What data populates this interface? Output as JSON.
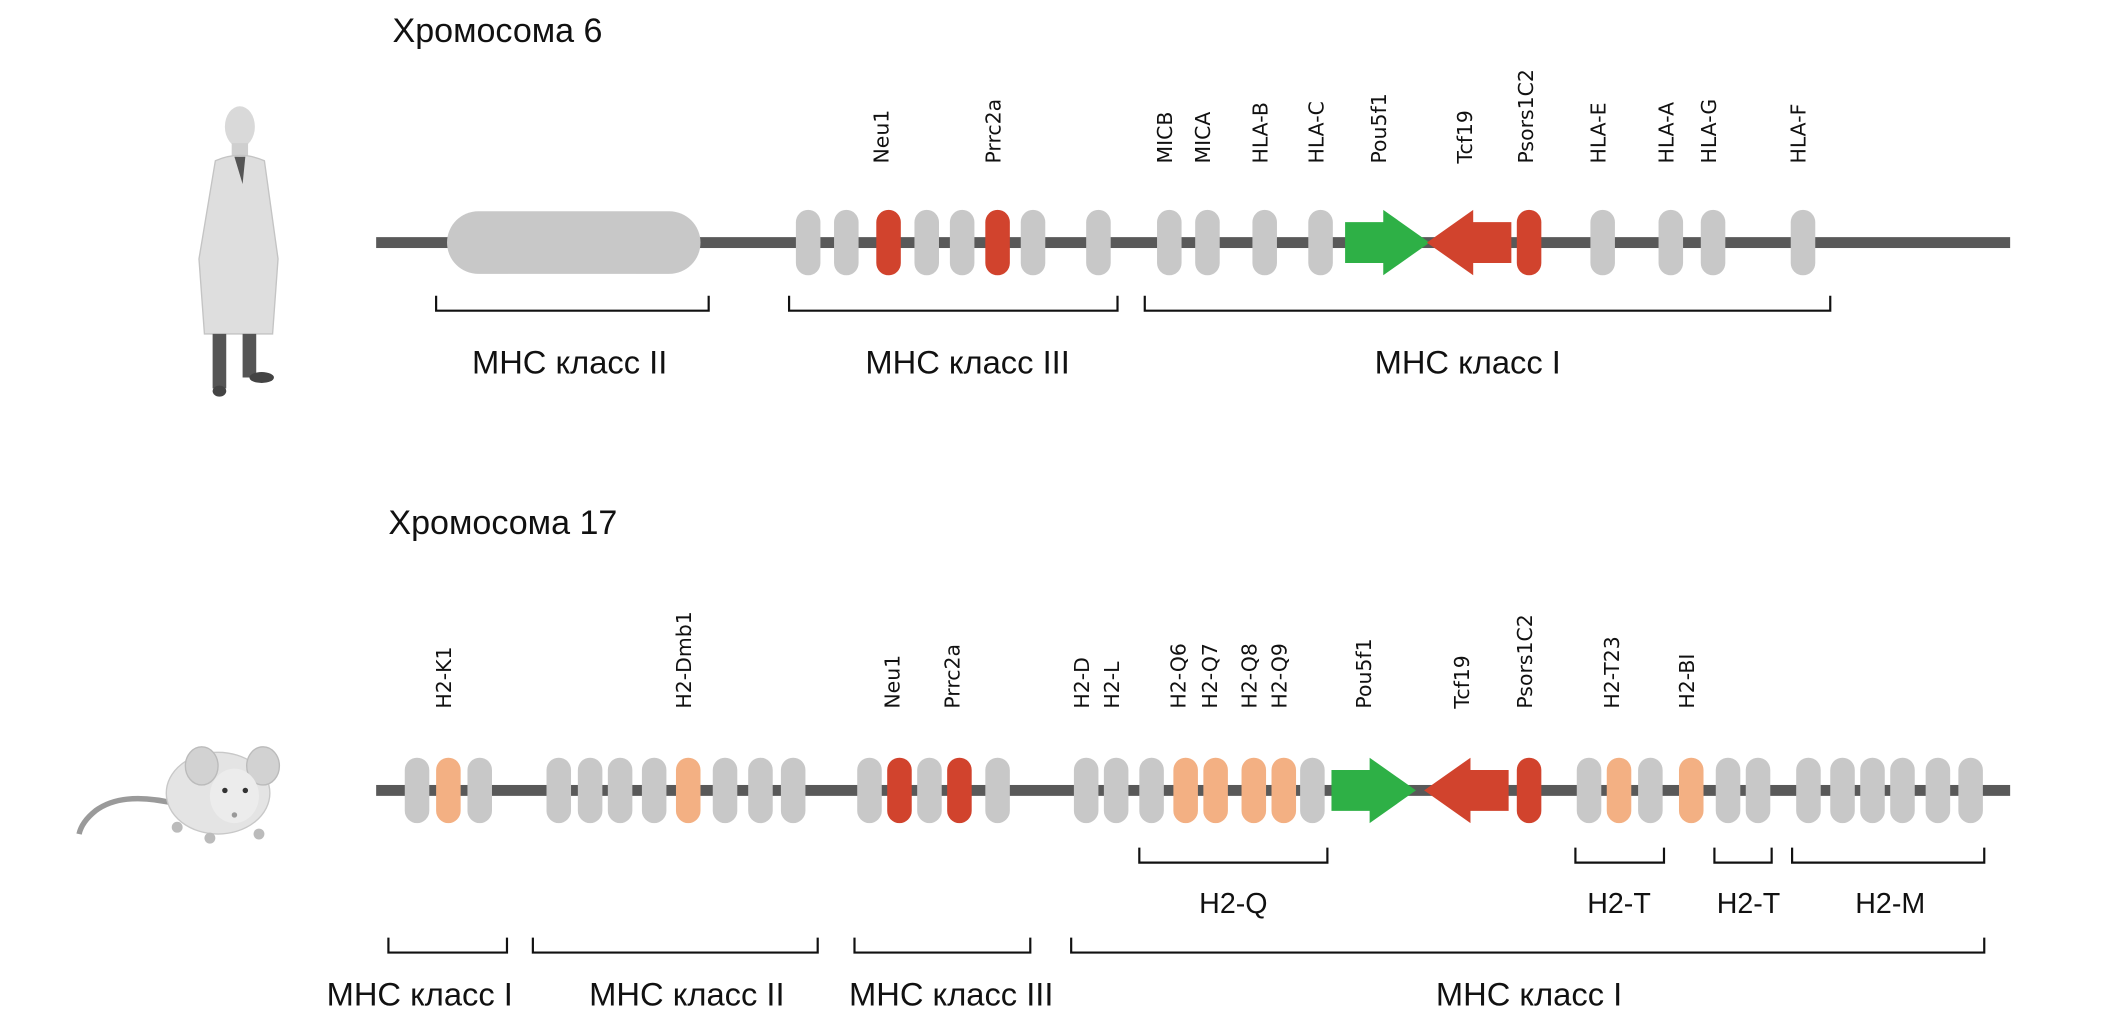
{
  "colors": {
    "line": "#595959",
    "gray": "#c8c8c8",
    "red": "#d1432d",
    "orange": "#f3b083",
    "green": "#2eb046"
  },
  "human": {
    "title": "Хромосома 6",
    "icon": "human-scientist-icon",
    "elements": [
      "block",
      "gray",
      "gray",
      "red",
      "gray",
      "gray",
      "red",
      "gray",
      "gray",
      "gray",
      "gray",
      "gray",
      "gray",
      "arrow-right",
      "arrow-left",
      "red",
      "gray",
      "gray",
      "gray",
      "gray"
    ],
    "gene_labels": [
      "Neu1",
      "Prrc2a",
      "MICB",
      "MICA",
      "HLA-B",
      "HLA-C",
      "Pou5f1",
      "Tcf19",
      "Psors1C2",
      "HLA-E",
      "HLA-A",
      "HLA-G",
      "HLA-F"
    ],
    "regions": [
      "МНС класс II",
      "МНС класс III",
      "МНС класс I"
    ]
  },
  "mouse": {
    "title": "Хромосома 17",
    "icon": "mouse-icon",
    "elements": [
      "gray",
      "orange",
      "gray",
      "gray",
      "gray",
      "gray",
      "gray",
      "orange",
      "gray",
      "gray",
      "gray",
      "gray",
      "red",
      "gray",
      "red",
      "gray",
      "gray",
      "gray",
      "gray",
      "orange",
      "orange",
      "orange",
      "orange",
      "gray",
      "arrow-right",
      "arrow-left",
      "red",
      "gray",
      "orange",
      "gray",
      "orange",
      "gray",
      "gray",
      "gray",
      "gray",
      "gray",
      "gray",
      "gray",
      "gray"
    ],
    "gene_labels": [
      "H2-K1",
      "H2-Dmb1",
      "Neu1",
      "Prrc2a",
      "H2-D",
      "H2-L",
      "H2-Q6",
      "H2-Q7",
      "H2-Q8",
      "H2-Q9",
      "Pou5f1",
      "Tcf19",
      "Psors1C2",
      "H2-T23",
      "H2-BI"
    ],
    "subregions": [
      "H2-Q",
      "H2-T",
      "H2-T",
      "H2-M"
    ],
    "regions": [
      "МНС класс I",
      "МНС класс II",
      "МНС класс III",
      "МНС класс I"
    ]
  }
}
